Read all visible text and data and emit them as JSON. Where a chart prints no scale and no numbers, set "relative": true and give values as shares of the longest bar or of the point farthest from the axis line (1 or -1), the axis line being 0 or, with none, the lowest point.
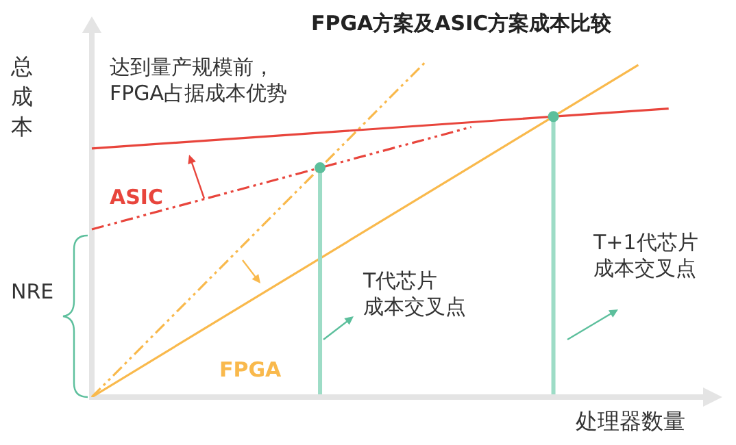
{
  "chart_data": {
    "type": "line",
    "title": "FPGA方案及ASIC方案成本比较",
    "xlabel": "处理器数量",
    "ylabel": "总成本",
    "relative": true,
    "legend": false,
    "marker": "none",
    "categories": [
      null,
      null,
      null,
      null,
      null,
      null,
      null,
      null,
      null,
      null,
      null,
      null,
      null,
      null,
      null,
      null,
      null,
      null,
      null,
      null,
      null,
      null,
      null,
      null,
      null,
      null,
      null,
      null,
      null,
      null,
      null,
      null,
      null,
      null,
      null,
      null,
      null,
      null,
      null,
      null,
      null
    ],
    "annotations": [
      "达到量产规模前，FPGA占据成本优势",
      "NRE",
      "T代芯片成本交叉点",
      "T+1代芯片成本交叉点"
    ],
    "series": [
      {
        "name": "FPGA",
        "color": "#f9b94c",
        "values": [
          0,
          null,
          null,
          null,
          null,
          null,
          null,
          null,
          null,
          null,
          null,
          null,
          null,
          null,
          null,
          null,
          null,
          null,
          null,
          null,
          null,
          null,
          null,
          null,
          null,
          null,
          null,
          null,
          null,
          null,
          null,
          null,
          null,
          null,
          null,
          null,
          0.99,
          null,
          null,
          null,
          null
        ]
      },
      {
        "name": "ASIC",
        "color": "#e8453c",
        "values": [
          0.741,
          null,
          null,
          null,
          null,
          null,
          null,
          null,
          null,
          null,
          null,
          null,
          null,
          null,
          null,
          null,
          null,
          null,
          null,
          null,
          null,
          null,
          null,
          null,
          null,
          null,
          null,
          null,
          null,
          null,
          null,
          null,
          null,
          null,
          null,
          null,
          null,
          null,
          0.86,
          null,
          null
        ]
      },
      {
        "color": "#f9b94c",
        "line_style": "dashed",
        "values": [
          0,
          null,
          null,
          null,
          null,
          null,
          null,
          null,
          null,
          null,
          null,
          null,
          null,
          null,
          null,
          null,
          null,
          null,
          null,
          null,
          null,
          null,
          1,
          null,
          null,
          null,
          null,
          null,
          null,
          null,
          null,
          null,
          null,
          null,
          null,
          null,
          null,
          null,
          null,
          null,
          null
        ]
      },
      {
        "color": "#e8453c",
        "line_style": "dashed",
        "values": [
          0.5,
          null,
          null,
          null,
          null,
          null,
          null,
          null,
          null,
          null,
          null,
          null,
          null,
          null,
          null,
          null,
          null,
          null,
          null,
          null,
          null,
          null,
          null,
          null,
          null,
          0.805,
          null,
          null,
          null,
          null,
          null,
          null,
          null,
          null,
          null,
          null,
          null,
          null,
          null,
          null,
          null
        ]
      }
    ]
  }
}
